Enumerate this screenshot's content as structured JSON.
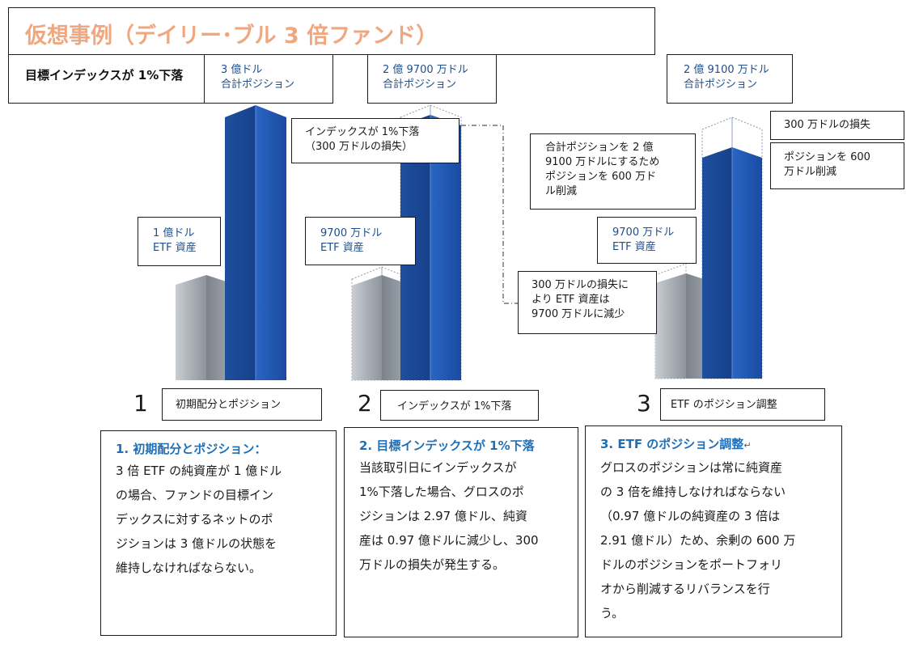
{
  "title": "仮想事例（デイリー･ブル 3 倍ファンド）",
  "target_label": "目標インデックスが 1%下落",
  "stage1": {
    "number": "1",
    "caption": "初期配分とポジション",
    "total_position": [
      "3 億ドル",
      "合計ポジション"
    ],
    "etf_assets": [
      "1 億ドル",
      "ETF 資産"
    ]
  },
  "stage2": {
    "number": "2",
    "caption": "インデックスが 1%下落",
    "total_position": [
      "2 億 9700 万ドル",
      "合計ポジション"
    ],
    "index_drop": [
      "インデックスが 1%下落",
      "（300 万ドルの損失）"
    ],
    "etf_assets": [
      "9700 万ドル",
      "ETF 資産"
    ],
    "loss_note": [
      "300 万ドルの損失に",
      "より ETF 資産は",
      "9700 万ドルに減少"
    ]
  },
  "stage3": {
    "number": "3",
    "caption": "ETF のポジション調整",
    "total_position": [
      "2 億 9100 万ドル",
      "合計ポジション"
    ],
    "loss": "300 万ドルの損失",
    "reduce": [
      "ポジションを 600",
      "万ドル削減"
    ],
    "adjust_note": [
      "合計ポジションを 2 億",
      "9100 万ドルにするため",
      "ポジションを 600 万ド",
      "ル削減"
    ],
    "etf_assets": [
      "9700 万ドル",
      "ETF 資産"
    ]
  },
  "desc1": {
    "heading": "1. 初期配分とポジション：",
    "lines": [
      "3 倍 ETF の純資産が 1 億ドル",
      "の場合、ファンドの目標イン",
      "デックスに対するネットのポ",
      "ジションは 3 億ドルの状態を",
      "維持しなければならない。"
    ]
  },
  "desc2": {
    "heading": "2. 目標インデックスが 1%下落",
    "lines": [
      "当該取引日にインデックスが",
      "1%下落した場合、グロスのポ",
      "ジションは 2.97 億ドル、純資",
      "産は 0.97 億ドルに減少し、300",
      "万ドルの損失が発生する。"
    ]
  },
  "desc3": {
    "heading": "3. ETF のポジション調整",
    "heading_mark": "↵",
    "lines": [
      "グロスのポジションは常に純資産",
      "の 3 倍を維持しなければならない",
      "（0.97 億ドルの純資産の 3 倍は",
      "2.91 億ドル）ため、余剰の 600 万",
      "ドルのポジションをポートフォリ",
      "オから削減するリバランスを行",
      "う。"
    ]
  },
  "colors": {
    "title": "#f0a77f",
    "label_blue": "#1f4e8c",
    "heading_blue": "#1f6fb8",
    "bar_blue": "#1b4f9c",
    "bar_gray": "#8a9099"
  }
}
